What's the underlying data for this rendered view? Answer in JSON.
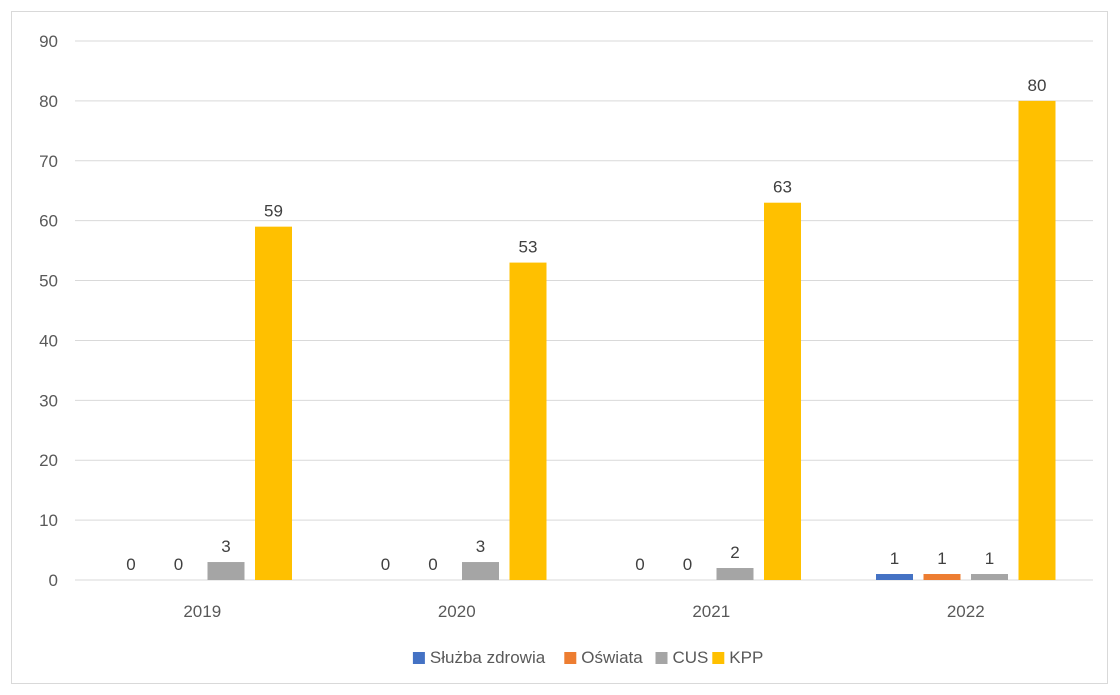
{
  "chart_data": {
    "type": "bar",
    "categories": [
      "2019",
      "2020",
      "2021",
      "2022"
    ],
    "series": [
      {
        "name": "Służba zdrowia",
        "color": "#4472c4",
        "values": [
          0,
          0,
          0,
          1
        ]
      },
      {
        "name": "Oświata",
        "color": "#ed7d31",
        "values": [
          0,
          0,
          0,
          1
        ]
      },
      {
        "name": "CUS",
        "color": "#a5a5a5",
        "values": [
          3,
          3,
          2,
          1
        ]
      },
      {
        "name": "KPP",
        "color": "#ffc000",
        "values": [
          59,
          53,
          63,
          80
        ]
      }
    ],
    "y_ticks": [
      "0",
      "10",
      "20",
      "30",
      "40",
      "50",
      "60",
      "70",
      "80",
      "90"
    ],
    "ylim": [
      0,
      90
    ],
    "grid": true,
    "legend_position": "bottom",
    "data_labels": true
  }
}
